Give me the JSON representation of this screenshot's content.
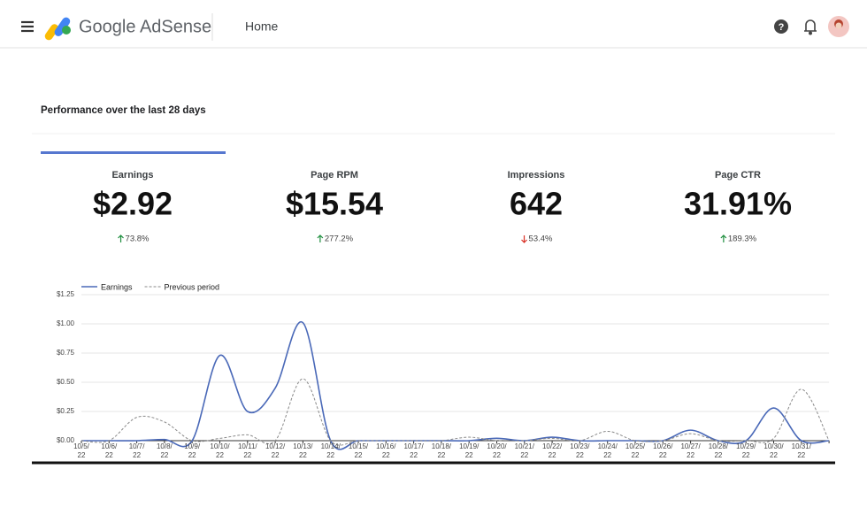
{
  "header": {
    "app_name": "Google AdSense",
    "page": "Home"
  },
  "section_title": "Performance over the last 28 days",
  "metrics": [
    {
      "label": "Earnings",
      "value": "$2.92",
      "change": "73.8%",
      "direction": "up",
      "selected": true
    },
    {
      "label": "Page RPM",
      "value": "$15.54",
      "change": "277.2%",
      "direction": "up",
      "selected": false
    },
    {
      "label": "Impressions",
      "value": "642",
      "change": "53.4%",
      "direction": "down",
      "selected": false
    },
    {
      "label": "Page CTR",
      "value": "31.91%",
      "change": "189.3%",
      "direction": "up",
      "selected": false
    }
  ],
  "chart_data": {
    "type": "line",
    "categories": [
      "10/5/\n22",
      "10/6/\n22",
      "10/7/\n22",
      "10/8/\n22",
      "10/9/\n22",
      "10/10/\n22",
      "10/11/\n22",
      "10/12/\n22",
      "10/13/\n22",
      "10/14/\n22",
      "10/15/\n22",
      "10/16/\n22",
      "10/17/\n22",
      "10/18/\n22",
      "10/19/\n22",
      "10/20/\n22",
      "10/21/\n22",
      "10/22/\n22",
      "10/23/\n22",
      "10/24/\n22",
      "10/25/\n22",
      "10/26/\n22",
      "10/27/\n22",
      "10/28/\n22",
      "10/29/\n22",
      "10/30/\n22",
      "10/31/\n22",
      null
    ],
    "series": [
      {
        "name": "Earnings",
        "color": "#4a69b8",
        "dashed": false,
        "values": [
          0,
          0,
          0,
          0.01,
          0,
          0.73,
          0.25,
          0.45,
          1.01,
          0,
          0,
          0,
          0,
          0,
          0,
          0.02,
          0,
          0.03,
          0,
          0,
          0,
          0,
          0.09,
          0,
          0,
          0.28,
          0,
          0
        ]
      },
      {
        "name": "Previous period",
        "color": "#8a8a8a",
        "dashed": true,
        "values": [
          0,
          0,
          0.2,
          0.16,
          0,
          0.02,
          0.05,
          0,
          0.53,
          0,
          0,
          0,
          0,
          0,
          0.03,
          0,
          0,
          0.02,
          0,
          0.08,
          0,
          0,
          0.06,
          0,
          0,
          0.02,
          0.44,
          0
        ]
      }
    ],
    "ylim": [
      0,
      1.25
    ],
    "yticks": [
      {
        "value": 0,
        "label": "$0.00"
      },
      {
        "value": 0.25,
        "label": "$0.25"
      },
      {
        "value": 0.5,
        "label": "$0.50"
      },
      {
        "value": 0.75,
        "label": "$0.75"
      },
      {
        "value": 1,
        "label": "$1.00"
      },
      {
        "value": 1.25,
        "label": "$1.25"
      }
    ],
    "grid": true
  }
}
